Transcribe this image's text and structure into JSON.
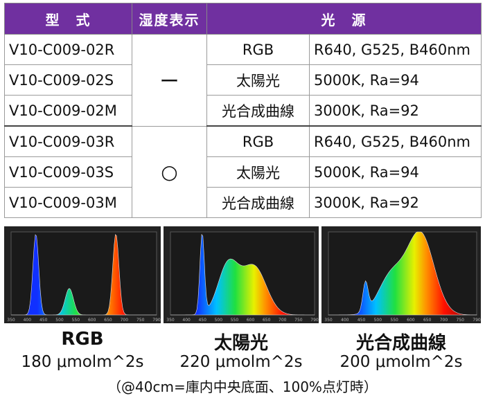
{
  "table": {
    "headers": [
      "型　式",
      "湿度表示",
      "光　源"
    ],
    "rows": [
      {
        "model": "V10-C009-02R",
        "type": "RGB",
        "spec": "R640, G525, B460nm"
      },
      {
        "model": "V10-C009-02S",
        "type": "太陽光",
        "spec": "5000K, Ra=94"
      },
      {
        "model": "V10-C009-02M",
        "type": "光合成曲線",
        "spec": "3000K, Ra=92"
      },
      {
        "model": "V10-C009-03R",
        "type": "RGB",
        "spec": "R640, G525, B460nm"
      },
      {
        "model": "V10-C009-03S",
        "type": "太陽光",
        "spec": "5000K, Ra=94"
      },
      {
        "model": "V10-C009-03M",
        "type": "光合成曲線",
        "spec": "3000K, Ra=92"
      }
    ],
    "humidity_marks": [
      "ー",
      "○"
    ]
  },
  "spectra": [
    {
      "name": "RGB",
      "value": "180 μmolm^2s",
      "ticks": [
        "350",
        "400",
        "450",
        "500",
        "550",
        "600",
        "650",
        "700",
        "750",
        "790"
      ]
    },
    {
      "name": "太陽光",
      "value": "220 μmolm^2s",
      "ticks": [
        "350",
        "400",
        "450",
        "500",
        "550",
        "600",
        "650",
        "700",
        "750",
        "790"
      ]
    },
    {
      "name": "光合成曲線",
      "value": "200 μmolm^2s",
      "ticks": [
        "350",
        "400",
        "450",
        "500",
        "550",
        "600",
        "650",
        "700",
        "750",
        "790"
      ]
    }
  ],
  "note": "（@40cm=庫内中央底面、100%点灯時）"
}
